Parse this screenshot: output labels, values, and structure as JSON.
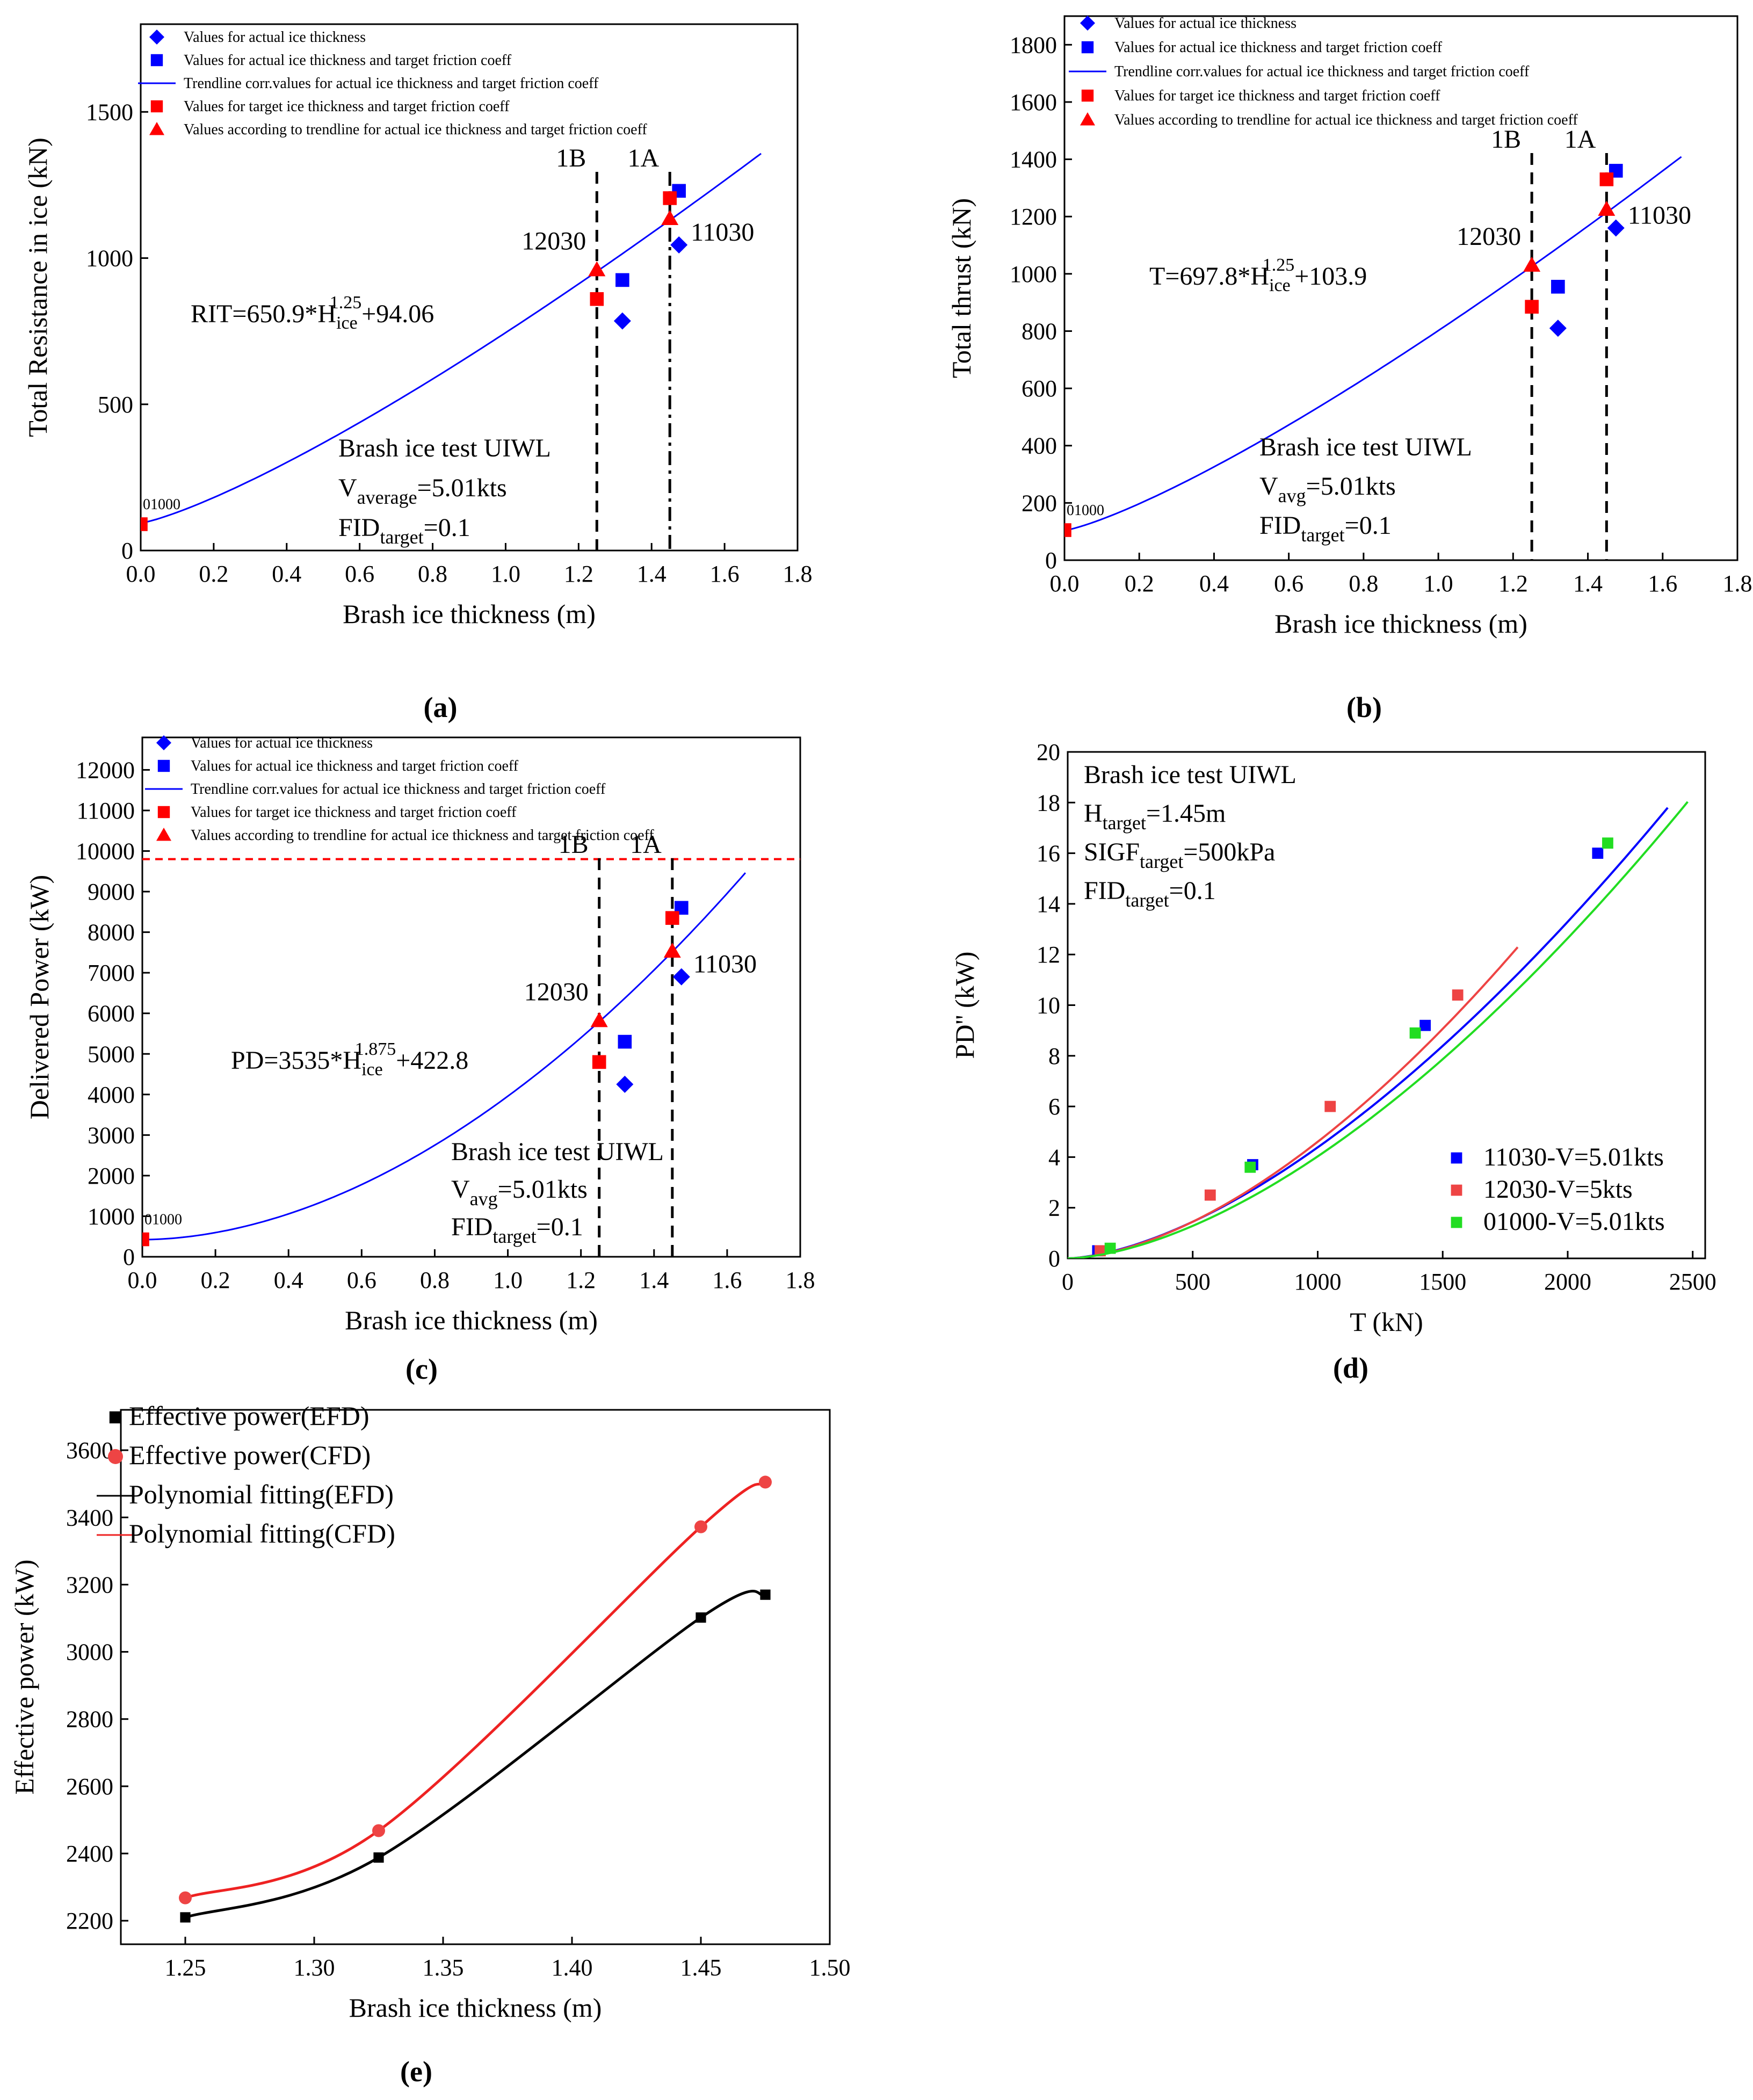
{
  "chart_data": [
    {
      "id": "a",
      "caption": "(a)",
      "type": "scatter",
      "xlabel": "Brash ice thickness (m)",
      "ylabel": "Total Resistance in ice (kN)",
      "xlim": [
        0,
        1.8
      ],
      "ylim": [
        0,
        1800
      ],
      "xticks": [
        0.0,
        0.2,
        0.4,
        0.6,
        0.8,
        1.0,
        1.2,
        1.4,
        1.6,
        1.8
      ],
      "xtick_labels": [
        "0.0",
        "0.2",
        "0.4",
        "0.6",
        "0.8",
        "1.0",
        "1.2",
        "1.4",
        "1.6",
        "1.8"
      ],
      "yticks": [
        0,
        500,
        1000,
        1500
      ],
      "ytick_labels": [
        "0",
        "500",
        "1000",
        "1500"
      ],
      "legend": [
        {
          "label": "Values for actual ice thickness",
          "marker": "diamond",
          "color": "#0000ff"
        },
        {
          "label": "Values for actual ice thickness and target friction coeff",
          "marker": "square",
          "color": "#0000ff"
        },
        {
          "label": "Trendline corr.values for actual ice thickness and target friction coeff",
          "marker": "line",
          "color": "#0000ff"
        },
        {
          "label": "Values for target ice thickness and target friction coeff",
          "marker": "square",
          "color": "#ff0000"
        },
        {
          "label": "Values according to trendline for actual ice thickness and target friction coeff",
          "marker": "triangle",
          "color": "#ff0000"
        }
      ],
      "trend": {
        "a": 650.9,
        "b": 1.25,
        "c": 94.06,
        "xmax": 1.7
      },
      "series": [
        {
          "marker": "diamond",
          "color": "#0000ff",
          "points": [
            [
              1.32,
              785
            ],
            [
              1.475,
              1045
            ]
          ]
        },
        {
          "marker": "square",
          "color": "#0000ff",
          "points": [
            [
              1.32,
              925
            ],
            [
              1.475,
              1230
            ]
          ]
        },
        {
          "marker": "square",
          "color": "#ff0000",
          "points": [
            [
              1.25,
              860
            ],
            [
              1.45,
              1205
            ],
            [
              0.0,
              90
            ]
          ]
        },
        {
          "marker": "triangle",
          "color": "#ff0000",
          "points": [
            [
              1.25,
              960
            ],
            [
              1.45,
              1135
            ]
          ]
        }
      ],
      "vlines": [
        {
          "x": 1.25,
          "label": "1B",
          "style": "dash"
        },
        {
          "x": 1.45,
          "label": "1A",
          "style": "dashdot"
        }
      ],
      "point_labels": [
        {
          "text": "12030",
          "x": 1.25,
          "y": 960
        },
        {
          "text": "11030",
          "x": 1.475,
          "y": 1045
        },
        {
          "text": "01000",
          "x": 0.0,
          "y": 90
        }
      ],
      "equation": {
        "lhs": "RIT=650.9*H",
        "sub": "ice",
        "sup": "1.25",
        "rhs": "+94.06"
      },
      "notes": [
        {
          "text": "Brash ice test UIWL"
        },
        {
          "main": "V",
          "sub": "average",
          "rest": "=5.01kts"
        },
        {
          "main": "FID",
          "sub": "target",
          "rest": "=0.1"
        }
      ]
    },
    {
      "id": "b",
      "caption": "(b)",
      "type": "scatter",
      "xlabel": "Brash ice thickness (m)",
      "ylabel": "Total thrust (kN)",
      "xlim": [
        0,
        1.8
      ],
      "ylim": [
        0,
        1900
      ],
      "xticks": [
        0.0,
        0.2,
        0.4,
        0.6,
        0.8,
        1.0,
        1.2,
        1.4,
        1.6,
        1.8
      ],
      "xtick_labels": [
        "0.0",
        "0.2",
        "0.4",
        "0.6",
        "0.8",
        "1.0",
        "1.2",
        "1.4",
        "1.6",
        "1.8"
      ],
      "yticks": [
        0,
        200,
        400,
        600,
        800,
        1000,
        1200,
        1400,
        1600,
        1800
      ],
      "ytick_labels": [
        "0",
        "200",
        "400",
        "600",
        "800",
        "1000",
        "1200",
        "1400",
        "1600",
        "1800"
      ],
      "legend": [
        {
          "label": "Values for actual ice thickness",
          "marker": "diamond",
          "color": "#0000ff"
        },
        {
          "label": "Values for actual ice thickness and target friction coeff",
          "marker": "square",
          "color": "#0000ff"
        },
        {
          "label": "Trendline corr.values for actual ice thickness and target friction coeff",
          "marker": "line",
          "color": "#0000ff"
        },
        {
          "label": "Values for target ice thickness and target friction coeff",
          "marker": "square",
          "color": "#ff0000"
        },
        {
          "label": "Values according to trendline for actual ice thickness and target friction coeff",
          "marker": "triangle",
          "color": "#ff0000"
        }
      ],
      "trend": {
        "a": 697.8,
        "b": 1.25,
        "c": 103.9,
        "xmax": 1.65
      },
      "series": [
        {
          "marker": "diamond",
          "color": "#0000ff",
          "points": [
            [
              1.32,
              810
            ],
            [
              1.475,
              1160
            ]
          ]
        },
        {
          "marker": "square",
          "color": "#0000ff",
          "points": [
            [
              1.32,
              955
            ],
            [
              1.475,
              1360
            ]
          ]
        },
        {
          "marker": "square",
          "color": "#ff0000",
          "points": [
            [
              1.25,
              885
            ],
            [
              1.45,
              1330
            ],
            [
              0.0,
              105
            ]
          ]
        },
        {
          "marker": "triangle",
          "color": "#ff0000",
          "points": [
            [
              1.25,
              1030
            ],
            [
              1.45,
              1225
            ]
          ]
        }
      ],
      "vlines": [
        {
          "x": 1.25,
          "label": "1B",
          "style": "dash"
        },
        {
          "x": 1.45,
          "label": "1A",
          "style": "dash"
        }
      ],
      "point_labels": [
        {
          "text": "12030",
          "x": 1.25,
          "y": 1030
        },
        {
          "text": "11030",
          "x": 1.475,
          "y": 1160
        },
        {
          "text": "01000",
          "x": 0.0,
          "y": 105
        }
      ],
      "equation": {
        "lhs": "T=697.8*H",
        "sub": "ice",
        "sup": "1.25",
        "rhs": "+103.9"
      },
      "notes": [
        {
          "text": "Brash ice test UIWL"
        },
        {
          "main": "V",
          "sub": "avg",
          "rest": "=5.01kts"
        },
        {
          "main": "FID",
          "sub": "target",
          "rest": "=0.1"
        }
      ]
    },
    {
      "id": "c",
      "caption": "(c)",
      "type": "scatter",
      "xlabel": "Brash ice thickness (m)",
      "ylabel": "Delivered Power (kW)",
      "xlim": [
        0,
        1.8
      ],
      "ylim": [
        0,
        12800
      ],
      "xticks": [
        0.0,
        0.2,
        0.4,
        0.6,
        0.8,
        1.0,
        1.2,
        1.4,
        1.6,
        1.8
      ],
      "xtick_labels": [
        "0.0",
        "0.2",
        "0.4",
        "0.6",
        "0.8",
        "1.0",
        "1.2",
        "1.4",
        "1.6",
        "1.8"
      ],
      "yticks": [
        0,
        1000,
        2000,
        3000,
        4000,
        5000,
        6000,
        7000,
        8000,
        9000,
        10000,
        11000,
        12000
      ],
      "ytick_labels": [
        "0",
        "1000",
        "2000",
        "3000",
        "4000",
        "5000",
        "6000",
        "7000",
        "8000",
        "9000",
        "10000",
        "11000",
        "12000"
      ],
      "legend": [
        {
          "label": "Values for actual ice thickness",
          "marker": "diamond",
          "color": "#0000ff"
        },
        {
          "label": "Values for actual ice thickness and target friction coeff",
          "marker": "square",
          "color": "#0000ff"
        },
        {
          "label": "Trendline corr.values for actual ice thickness and target friction coeff",
          "marker": "line",
          "color": "#0000ff"
        },
        {
          "label": "Values for target ice thickness and target friction coeff",
          "marker": "square",
          "color": "#ff0000"
        },
        {
          "label": "Values according to trendline for actual ice thickness and target friction coeff",
          "marker": "triangle",
          "color": "#ff0000"
        }
      ],
      "trend": {
        "a": 3535,
        "b": 1.875,
        "c": 422.8,
        "xmax": 1.65
      },
      "hline": {
        "y": 9800,
        "color": "#ff0000"
      },
      "series": [
        {
          "marker": "diamond",
          "color": "#0000ff",
          "points": [
            [
              1.32,
              4250
            ],
            [
              1.475,
              6900
            ]
          ]
        },
        {
          "marker": "square",
          "color": "#0000ff",
          "points": [
            [
              1.32,
              5300
            ],
            [
              1.475,
              8600
            ]
          ]
        },
        {
          "marker": "square",
          "color": "#ff0000",
          "points": [
            [
              1.25,
              4800
            ],
            [
              1.45,
              8350
            ],
            [
              0.0,
              430
            ]
          ]
        },
        {
          "marker": "triangle",
          "color": "#ff0000",
          "points": [
            [
              1.25,
              5820
            ],
            [
              1.45,
              7530
            ]
          ]
        }
      ],
      "vlines": [
        {
          "x": 1.25,
          "label": "1B",
          "style": "dash"
        },
        {
          "x": 1.45,
          "label": "1A",
          "style": "dash"
        }
      ],
      "point_labels": [
        {
          "text": "12030",
          "x": 1.25,
          "y": 5820
        },
        {
          "text": "11030",
          "x": 1.475,
          "y": 6900
        },
        {
          "text": "01000",
          "x": 0.0,
          "y": 430
        }
      ],
      "equation": {
        "lhs": "PD=3535*H",
        "sub": "ice",
        "sup": "1.875",
        "rhs": "+422.8"
      },
      "notes": [
        {
          "text": "Brash ice test UIWL"
        },
        {
          "main": "V",
          "sub": "avg",
          "rest": "=5.01kts"
        },
        {
          "main": "FID",
          "sub": "target",
          "rest": "=0.1"
        }
      ]
    },
    {
      "id": "d",
      "caption": "(d)",
      "type": "scatter",
      "xlabel": "T (kN)",
      "ylabel": "PD'' (kW)",
      "xlim": [
        0,
        2550
      ],
      "ylim": [
        0,
        20
      ],
      "xticks": [
        0,
        500,
        1000,
        1500,
        2000,
        2500
      ],
      "xtick_labels": [
        "0",
        "500",
        "1000",
        "1500",
        "2000",
        "2500"
      ],
      "yticks": [
        0,
        2,
        4,
        6,
        8,
        10,
        12,
        14,
        16,
        18,
        20
      ],
      "ytick_labels": [
        "0",
        "2",
        "4",
        "6",
        "8",
        "10",
        "12",
        "14",
        "16",
        "18",
        "20"
      ],
      "notes": [
        {
          "text": "Brash ice test UIWL"
        },
        {
          "main": "H",
          "sub": "target",
          "rest": "=1.45m"
        },
        {
          "main": "SIGF",
          "sub": "target",
          "rest": "=500kPa"
        },
        {
          "main": "FID",
          "sub": "target",
          "rest": "=0.1"
        }
      ],
      "series": [
        {
          "name": "11030-V=5.01kts",
          "color": "#0000ff",
          "points": [
            [
              120,
              0.3
            ],
            [
              740,
              3.7
            ],
            [
              1430,
              9.2
            ],
            [
              2120,
              16.0
            ]
          ],
          "fit": {
            "k": 6.95e-05,
            "n": 1.6,
            "xmax": 2400
          }
        },
        {
          "name": "12030-V=5kts",
          "color": "#ee4444",
          "points": [
            [
              130,
              0.3
            ],
            [
              570,
              2.5
            ],
            [
              1050,
              6.0
            ],
            [
              1560,
              10.4
            ]
          ],
          "fit": {
            "k": 4.5e-05,
            "n": 1.67,
            "xmax": 1800
          }
        },
        {
          "name": "01000-V=5.01kts",
          "color": "#22dd22",
          "points": [
            [
              170,
              0.4
            ],
            [
              730,
              3.6
            ],
            [
              1390,
              8.9
            ],
            [
              2160,
              16.4
            ]
          ],
          "fit": {
            "k": 4.52e-05,
            "n": 1.65,
            "xmax": 2480
          }
        }
      ]
    },
    {
      "id": "e",
      "caption": "(e)",
      "type": "line",
      "xlabel": "Brash ice thickness (m)",
      "ylabel": "Effective power (kW)",
      "xlim": [
        1.225,
        1.5
      ],
      "ylim": [
        2130,
        3720
      ],
      "xticks": [
        1.25,
        1.3,
        1.35,
        1.4,
        1.45,
        1.5
      ],
      "xtick_labels": [
        "1.25",
        "1.30",
        "1.35",
        "1.40",
        "1.45",
        "1.50"
      ],
      "yticks": [
        2200,
        2400,
        2600,
        2800,
        3000,
        3200,
        3400,
        3600
      ],
      "ytick_labels": [
        "2200",
        "2400",
        "2600",
        "2800",
        "3000",
        "3200",
        "3400",
        "3600"
      ],
      "legend": [
        {
          "label": "Effective power(EFD)",
          "marker": "square",
          "color": "#000000"
        },
        {
          "label": "Effective power(CFD)",
          "marker": "circle",
          "color": "#ee4444"
        },
        {
          "label": "Polynomial fitting(EFD)",
          "marker": "line",
          "color": "#000000"
        },
        {
          "label": "Polynomial fitting(CFD)",
          "marker": "line",
          "color": "#ee2222"
        }
      ],
      "series": [
        {
          "name": "Effective power(EFD)",
          "color": "#000000",
          "x": [
            1.25,
            1.325,
            1.45,
            1.475
          ],
          "y": [
            2210,
            2388,
            3102,
            3170
          ]
        },
        {
          "name": "Effective power(CFD)",
          "color": "#ee4444",
          "x": [
            1.25,
            1.325,
            1.45,
            1.475
          ],
          "y": [
            2268,
            2468,
            3372,
            3505
          ]
        }
      ]
    }
  ]
}
